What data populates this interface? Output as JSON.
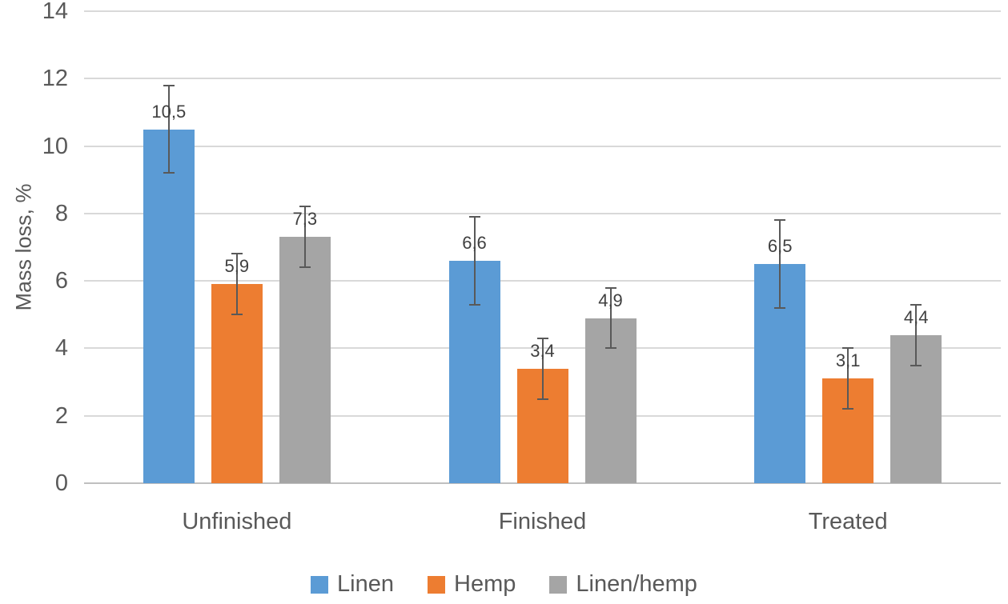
{
  "chart_data": {
    "type": "bar",
    "title": "",
    "categories": [
      "Unfinished",
      "Finished",
      "Treated"
    ],
    "series": [
      {
        "name": "Linen",
        "color": "#5b9bd5",
        "values": [
          10.5,
          6.6,
          6.5
        ],
        "labels": [
          "10,5",
          "6,6",
          "6,5"
        ],
        "errors": [
          1.3,
          1.3,
          1.3
        ]
      },
      {
        "name": "Hemp",
        "color": "#ed7d31",
        "values": [
          5.9,
          3.4,
          3.1
        ],
        "labels": [
          "5,9",
          "3,4",
          "3,1"
        ],
        "errors": [
          0.9,
          0.9,
          0.9
        ]
      },
      {
        "name": "Linen/hemp",
        "color": "#a5a5a5",
        "values": [
          7.3,
          4.9,
          4.4
        ],
        "labels": [
          "7,3",
          "4,9",
          "4,4"
        ],
        "errors": [
          0.9,
          0.9,
          0.9
        ]
      }
    ],
    "xlabel": "",
    "ylabel": "Mass loss, %",
    "ylim": [
      0,
      14
    ],
    "ytick_step": 2,
    "yticks": [
      "0",
      "2",
      "4",
      "6",
      "8",
      "10",
      "12",
      "14"
    ],
    "grid": true,
    "legend_position": "bottom",
    "grid_color": "#d9d9d9",
    "axis_text_color": "#595959",
    "error_bar_color": "#595959"
  }
}
